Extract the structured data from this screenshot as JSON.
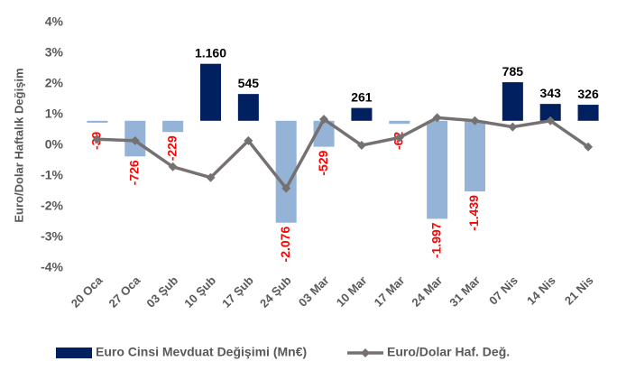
{
  "chart_data": {
    "type": "bar_line",
    "y_label": "Euro/Dolar Haftalık  Değişim",
    "categories": [
      "20 Oca",
      "27 Oca",
      "03 Şub",
      "10 Şub",
      "17 Şub",
      "24 Şub",
      "03 Mar",
      "10 Mar",
      "17 Mar",
      "24 Mar",
      "31 Mar",
      "07 Nis",
      "14 Nis",
      "21 Nis"
    ],
    "series": [
      {
        "name": "Euro Cinsi Mevduat Değişimi (Mn€)",
        "type": "bar",
        "axis": "y2",
        "color": "#002060",
        "negative_color": "#95b3d7",
        "values": [
          -39,
          -726,
          -229,
          1160,
          545,
          -2076,
          -529,
          261,
          -62,
          -1997,
          -1439,
          785,
          343,
          326
        ],
        "value_labels": [
          "-39",
          "-726",
          "-229",
          "1.160",
          "545",
          "-2.076",
          "-529",
          "261",
          "-62",
          "-1.997",
          "-1.439",
          "785",
          "343",
          "326"
        ]
      },
      {
        "name": "Euro/Dolar Haf. Değ.",
        "type": "line",
        "color": "#767171",
        "values": [
          0.2,
          0.15,
          -0.7,
          -1.05,
          0.15,
          -1.4,
          0.85,
          0.0,
          0.25,
          0.9,
          0.8,
          0.6,
          0.8,
          -0.05
        ]
      }
    ],
    "ylim": [
      -4,
      4
    ],
    "yticks": [
      {
        "value": -4,
        "label": "-4%"
      },
      {
        "value": -3,
        "label": "-3%"
      },
      {
        "value": -2,
        "label": "-2%"
      },
      {
        "value": -1,
        "label": "-1%"
      },
      {
        "value": 0,
        "label": "0%"
      },
      {
        "value": 1,
        "label": "1%"
      },
      {
        "value": 2,
        "label": "2%"
      },
      {
        "value": 3,
        "label": "3%"
      },
      {
        "value": 4,
        "label": "4%"
      }
    ],
    "y2lim": [
      -3000,
      2000
    ]
  }
}
